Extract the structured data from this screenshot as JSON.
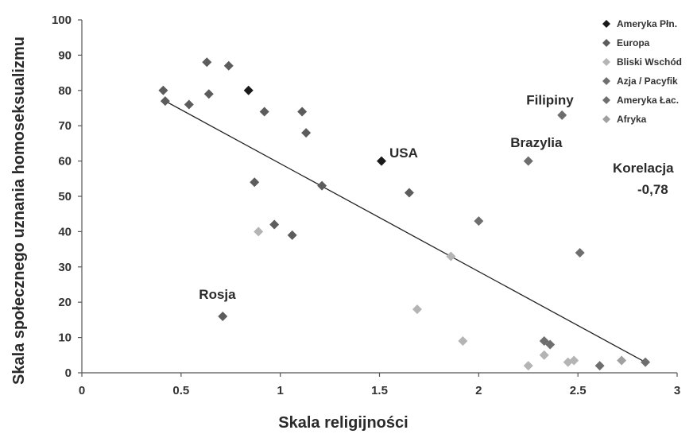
{
  "chart_data": {
    "type": "scatter",
    "xlabel": "Skala religijności",
    "ylabel": "Skala społecznego  uznania  homoseksualizmu",
    "xlim": [
      0,
      3
    ],
    "ylim": [
      0,
      100
    ],
    "x_ticks": [
      "0",
      "0.5",
      "1",
      "1.5",
      "2",
      "2.5",
      "3"
    ],
    "y_ticks": [
      "0",
      "10",
      "20",
      "30",
      "40",
      "50",
      "60",
      "70",
      "80",
      "90",
      "100"
    ],
    "grid": false,
    "legend_position": "top-right",
    "series": [
      {
        "name": "Ameryka Płn.",
        "color": "#1a1a1a",
        "points": [
          [
            0.84,
            80
          ],
          [
            1.51,
            60
          ]
        ]
      },
      {
        "name": "Europa",
        "color": "#5c5c5c",
        "points": [
          [
            0.41,
            80
          ],
          [
            0.42,
            77
          ],
          [
            0.54,
            76
          ],
          [
            0.63,
            88
          ],
          [
            0.64,
            79
          ],
          [
            0.74,
            87
          ],
          [
            0.87,
            54
          ],
          [
            0.92,
            74
          ],
          [
            0.97,
            42
          ],
          [
            1.06,
            39
          ],
          [
            1.11,
            74
          ],
          [
            1.13,
            68
          ],
          [
            1.21,
            53
          ],
          [
            1.65,
            51
          ],
          [
            0.71,
            16
          ]
        ]
      },
      {
        "name": "Bliski Wschód",
        "color": "#b4b4b4",
        "points": [
          [
            0.89,
            40
          ],
          [
            1.69,
            18
          ],
          [
            1.92,
            9
          ],
          [
            1.86,
            33
          ],
          [
            2.25,
            2
          ],
          [
            2.33,
            5
          ],
          [
            2.45,
            3
          ],
          [
            2.48,
            3.5
          ]
        ]
      },
      {
        "name": "Azja / Pacyfik",
        "color": "#6e6e6e",
        "points": [
          [
            2.33,
            9
          ],
          [
            2.36,
            8
          ],
          [
            2.61,
            2
          ],
          [
            2.84,
            3
          ]
        ]
      },
      {
        "name": "Ameryka Łac.",
        "color": "#6e6e6e",
        "points": [
          [
            2.0,
            43
          ],
          [
            2.25,
            60
          ],
          [
            2.42,
            73
          ],
          [
            2.51,
            34
          ]
        ]
      },
      {
        "name": "Afryka",
        "color": "#a0a0a0",
        "points": [
          [
            2.72,
            3.5
          ]
        ]
      }
    ],
    "trendline": {
      "x": [
        0.42,
        2.84
      ],
      "y": [
        77,
        3
      ]
    },
    "annotations": [
      {
        "text": "USA",
        "x": 1.55,
        "y": 61
      },
      {
        "text": "Filipiny",
        "x": 2.24,
        "y": 76
      },
      {
        "text": "Brazylia",
        "x": 2.16,
        "y": 64
      },
      {
        "text": "Rosja",
        "x": 0.59,
        "y": 21
      }
    ],
    "correlation_label": [
      "Korelacja",
      "-0,78"
    ]
  }
}
